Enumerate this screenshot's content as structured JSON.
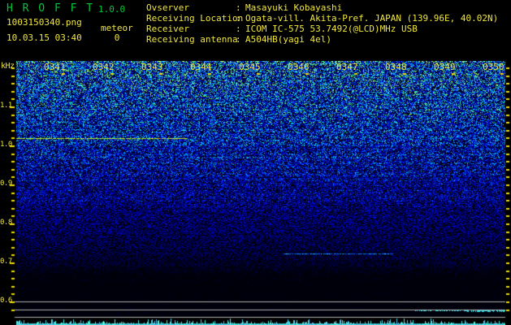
{
  "app": {
    "name": "H R O F F T",
    "version": "1.0.0"
  },
  "status": {
    "filename": "1003150340.png",
    "datetime": "10.03.15 03:40",
    "counter_label": "meteor",
    "counter_value": "0"
  },
  "observation": {
    "separator": ":",
    "rows": [
      {
        "label": "Ovserver",
        "value": "Masayuki Kobayashi"
      },
      {
        "label": "Receiving Location",
        "value": "Ogata-vill. Akita-Pref. JAPAN (139.96E, 40.02N)"
      },
      {
        "label": "Receiver",
        "value": "ICOM IC-575 53.7492(@LCD)MHz USB"
      },
      {
        "label": "Receiving antenna",
        "value": "A504HB(yagi 4el)"
      }
    ]
  },
  "chart_data": {
    "type": "heatmap",
    "title": "HROFFT 10-minute radio meteor echo spectrogram",
    "meteor_count": 0,
    "x_axis": {
      "unit": "hhmm (JST)",
      "tick_labels": [
        "0341",
        "0342",
        "0343",
        "0344",
        "0345",
        "0346",
        "0347",
        "0348",
        "0349",
        "0350"
      ],
      "minutes_per_division": 1
    },
    "y_axis": {
      "unit": "kHz",
      "tick_labels": [
        "1.1",
        "1.0",
        "0.9",
        "0.8",
        "0.7",
        "0.6"
      ],
      "approx_top_khz": 1.22,
      "approx_bottom_khz": 0.56
    },
    "signals": [
      {
        "name": "carrier-trace",
        "freq_khz": 1.02,
        "time_start": "0341:00",
        "time_end": "0344:30",
        "appearance": "continuous yellow-green line with red-tinged segment"
      },
      {
        "name": "faint-echo",
        "freq_khz": 0.72,
        "time_start": "0346:30",
        "time_end": "0348:45",
        "appearance": "faint blue horizontal trace"
      },
      {
        "name": "level-trace",
        "freq_khz": null,
        "time_start": "0349:10",
        "time_end": "0350:00",
        "appearance": "bright cyan signal-level line at bottom right"
      }
    ],
    "reference_lines": {
      "count": 3,
      "color": "gray",
      "location": "bottom of spectrogram"
    },
    "noise_profile": "dense blue/cyan noise at top fading to black toward low frequencies",
    "level_meter": "cyan spike graph along bottom edge"
  },
  "colors": {
    "title_green": "#00c838",
    "text_yellow": "#f0e63c",
    "axis_yellow": "#f0dc00",
    "grid_gray": "#b0b0b0",
    "level_cyan": "#50dcdc",
    "background": "#000000"
  }
}
